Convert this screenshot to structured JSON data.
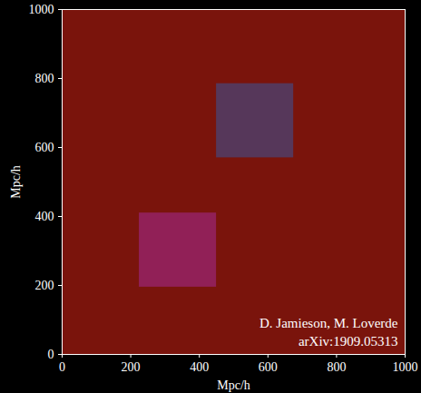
{
  "chart_data": {
    "type": "image",
    "xlabel": "Mpc/h",
    "ylabel": "Mpc/h",
    "xlim": [
      0,
      1000
    ],
    "ylim": [
      0,
      1000
    ],
    "xticks": [
      0,
      200,
      400,
      600,
      800,
      1000
    ],
    "yticks": [
      0,
      200,
      400,
      600,
      800,
      1000
    ],
    "color": "#7a140c",
    "regions": [
      {
        "x": [
          450,
          675
        ],
        "y": [
          570,
          785
        ],
        "color": "#3d4f8f"
      },
      {
        "x": [
          225,
          450
        ],
        "y": [
          195,
          410
        ],
        "color": "#a0288a"
      }
    ],
    "annotations": [
      "D. Jamieson, M. Loverde",
      "arXiv:1909.05313"
    ]
  }
}
